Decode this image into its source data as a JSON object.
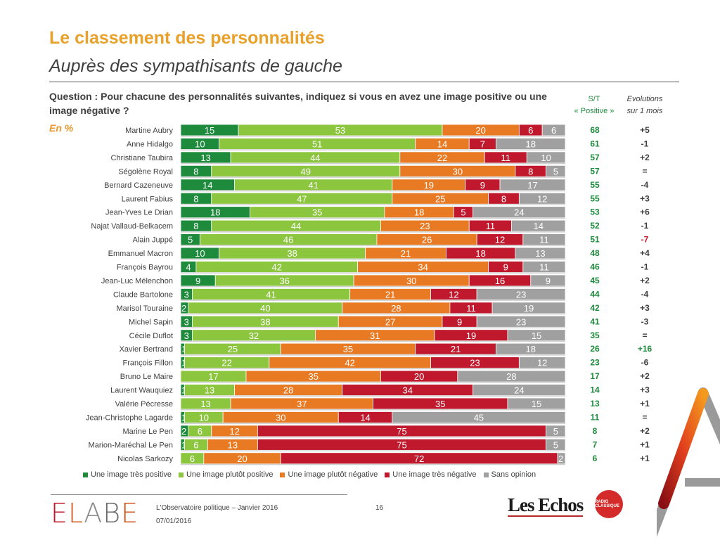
{
  "header": {
    "title": "Le classement des personnalités",
    "subtitle": "Auprès des sympathisants de gauche",
    "question": "Question : Pour chacune des personnalités suivantes, indiquez si vous en avez une image positive ou une image négative ?",
    "unit_label": "En %",
    "col_st_line1": "S/T",
    "col_st_line2": "« Positive »",
    "col_ev_line1": "Evolutions",
    "col_ev_line2": "sur 1 mois"
  },
  "colors": {
    "tres_positive": "#1e8a3c",
    "plutot_positive": "#8cc63f",
    "plutot_negative": "#e87a23",
    "tres_negative": "#c0192d",
    "sans_opinion": "#a0a0a0",
    "st_text": "#1e8a3c",
    "ev_text": "#404040",
    "ev_negative_highlight": "#c0192d",
    "ev_positive_highlight": "#1e8a3c",
    "title": "#e8a12a"
  },
  "chart_data": {
    "type": "bar",
    "orientation": "horizontal-stacked-100",
    "title": "Le classement des personnalités",
    "subtitle": "Auprès des sympathisants de gauche",
    "unit": "%",
    "xlim": [
      0,
      100
    ],
    "legend_position": "bottom",
    "series_names": [
      "Une image très positive",
      "Une image plutôt positive",
      "Une image plutôt négative",
      "Une image très négative",
      "Sans opinion"
    ],
    "categories": [
      "Martine Aubry",
      "Anne Hidalgo",
      "Christiane Taubira",
      "Ségolène Royal",
      "Bernard Cazeneuve",
      "Laurent Fabius",
      "Jean-Yves Le Drian",
      "Najat Vallaud-Belkacem",
      "Alain Juppé",
      "Emmanuel Macron",
      "François Bayrou",
      "Jean-Luc Mélenchon",
      "Claude Bartolone",
      "Marisol Touraine",
      "Michel Sapin",
      "Cécile Duflot",
      "Xavier Bertrand",
      "François Fillon",
      "Bruno Le Maire",
      "Laurent Wauquiez",
      "Valérie Pécresse",
      "Jean-Christophe Lagarde",
      "Marine Le Pen",
      "Marion-Maréchal Le Pen",
      "Nicolas Sarkozy"
    ],
    "series": [
      {
        "name": "Une image très positive",
        "values": [
          15,
          10,
          13,
          8,
          14,
          8,
          18,
          8,
          5,
          10,
          4,
          9,
          3,
          2,
          3,
          3,
          1,
          1,
          0,
          1,
          0,
          1,
          2,
          1,
          0
        ]
      },
      {
        "name": "Une image plutôt positive",
        "values": [
          53,
          51,
          44,
          49,
          41,
          47,
          35,
          44,
          46,
          38,
          42,
          36,
          41,
          40,
          38,
          32,
          25,
          22,
          17,
          13,
          13,
          10,
          6,
          6,
          6
        ]
      },
      {
        "name": "Une image plutôt négative",
        "values": [
          20,
          14,
          22,
          30,
          19,
          25,
          18,
          23,
          26,
          21,
          34,
          30,
          21,
          28,
          27,
          31,
          35,
          42,
          35,
          28,
          37,
          30,
          12,
          13,
          20
        ]
      },
      {
        "name": "Une image très négative",
        "values": [
          6,
          7,
          11,
          8,
          9,
          8,
          5,
          11,
          12,
          18,
          9,
          16,
          12,
          11,
          9,
          19,
          21,
          23,
          20,
          34,
          35,
          14,
          75,
          75,
          72
        ]
      },
      {
        "name": "Sans opinion",
        "values": [
          6,
          18,
          10,
          5,
          17,
          12,
          24,
          14,
          11,
          13,
          11,
          9,
          23,
          19,
          23,
          15,
          18,
          12,
          28,
          24,
          15,
          45,
          5,
          5,
          2
        ]
      }
    ],
    "st_positive": [
      68,
      61,
      57,
      57,
      55,
      55,
      53,
      52,
      51,
      48,
      46,
      45,
      44,
      42,
      41,
      35,
      26,
      23,
      17,
      14,
      13,
      11,
      8,
      7,
      6
    ],
    "evolutions": [
      "+5",
      "-1",
      "+2",
      "=",
      "-4",
      "+3",
      "+6",
      "-1",
      "-7",
      "+4",
      "-1",
      "+2",
      "-4",
      "+3",
      "-3",
      "=",
      "+16",
      "-6",
      "+2",
      "+3",
      "+1",
      "=",
      "+2",
      "+1",
      "+1"
    ],
    "evolution_highlight": {
      "8": "negative",
      "16": "positive"
    }
  },
  "footer": {
    "logo_letters": [
      "E",
      "L",
      "A",
      "B",
      "E"
    ],
    "source_line": "L'Observatoire politique – Janvier 2016",
    "date": "07/01/2016",
    "page_number": "16",
    "partner1": "Les Echos",
    "partner2": "RADIO CLASSIQUE"
  }
}
